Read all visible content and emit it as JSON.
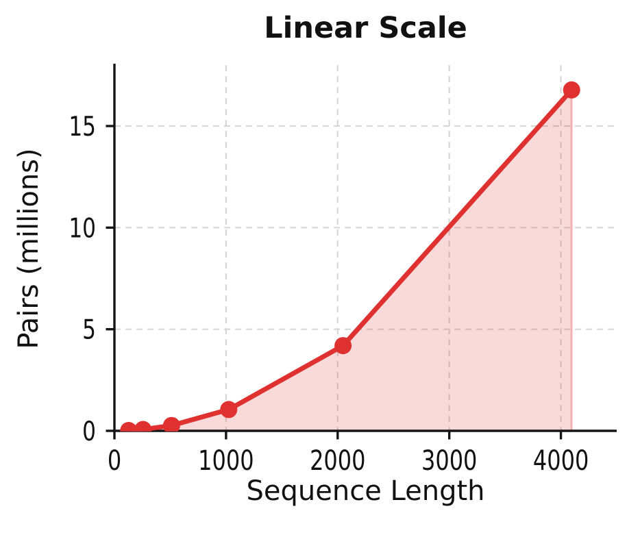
{
  "chart_data": {
    "type": "area",
    "title": "Linear Scale",
    "xlabel": "Sequence Length",
    "ylabel": "Pairs (millions)",
    "x": [
      128,
      256,
      512,
      1024,
      2048,
      4096
    ],
    "y": [
      0.016,
      0.066,
      0.262,
      1.049,
      4.194,
      16.777
    ],
    "xlim": [
      0,
      4500
    ],
    "ylim": [
      0,
      18
    ],
    "xticks": [
      0,
      1000,
      2000,
      3000,
      4000
    ],
    "yticks": [
      0,
      5,
      10,
      15
    ],
    "grid": true,
    "legend": "none",
    "colors": {
      "line": "#e03131",
      "fill": "rgba(224,49,49,0.18)",
      "fill_edge": "rgba(224,49,49,0.30)",
      "grid": "#d7d7d7",
      "axis": "#151515",
      "text": "#111111"
    }
  }
}
